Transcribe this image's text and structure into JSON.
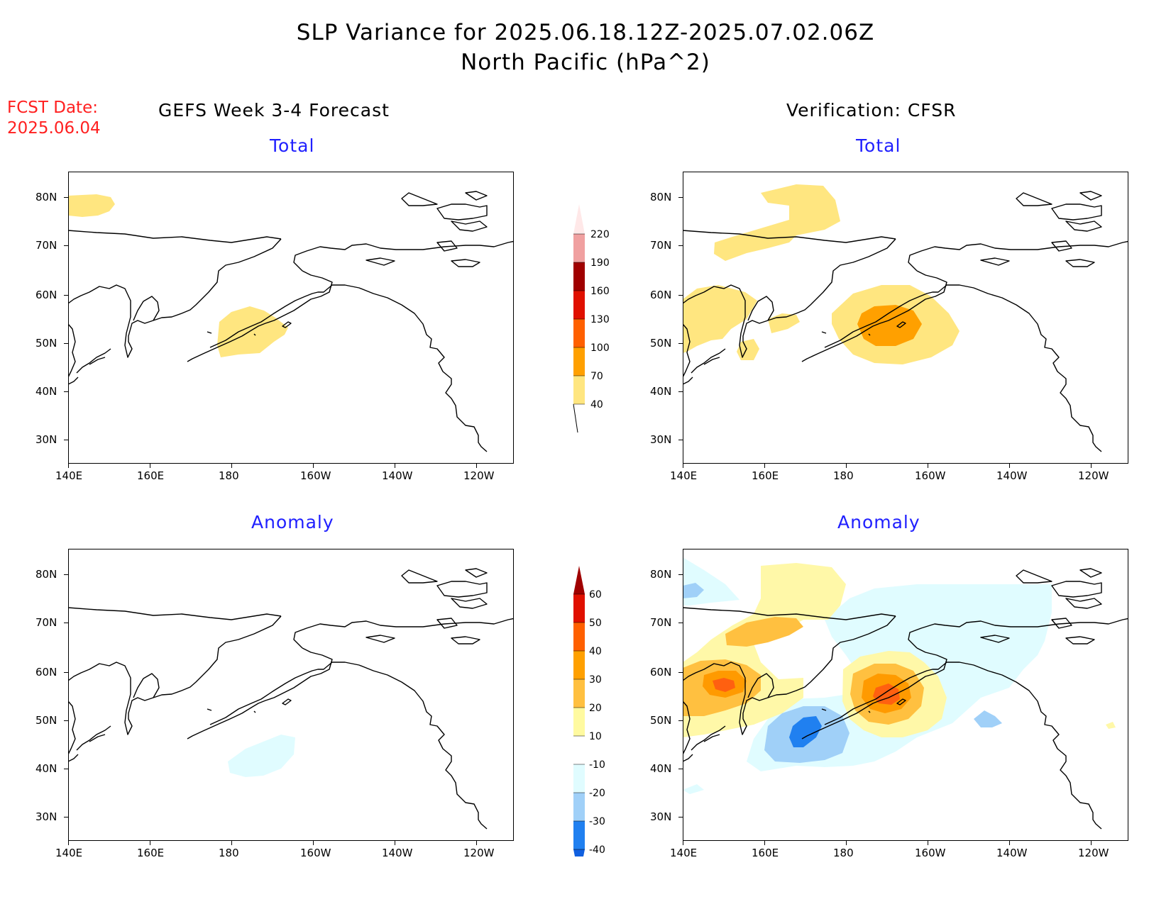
{
  "title": {
    "line1": "SLP Variance for 2025.06.18.12Z-2025.07.02.06Z",
    "line2": "North Pacific (hPa^2)"
  },
  "fcst": {
    "label": "FCST Date:",
    "date": "2025.06.04"
  },
  "columns": {
    "left": "GEFS Week 3-4 Forecast",
    "right": "Verification: CFSR"
  },
  "panel_titles": {
    "total": "Total",
    "anomaly": "Anomaly"
  },
  "axes": {
    "lon_labels": [
      "140E",
      "160E",
      "180",
      "160W",
      "140W",
      "120W"
    ],
    "lat_labels": [
      "80N",
      "70N",
      "60N",
      "50N",
      "40N",
      "30N"
    ]
  },
  "colorbars": {
    "total": {
      "levels": [
        "40",
        "70",
        "100",
        "130",
        "160",
        "190",
        "220"
      ],
      "colors": [
        "#ffe680",
        "#ffa000",
        "#ff6000",
        "#e01000",
        "#a00000",
        "#f0a0a0",
        "#ffe8e8"
      ]
    },
    "anomaly": {
      "levels": [
        "-40",
        "-30",
        "-20",
        "-10",
        "10",
        "20",
        "30",
        "40",
        "50",
        "60"
      ],
      "colors": [
        "#1060e0",
        "#2080f0",
        "#a0d0f8",
        "#e0fcff",
        "#ffffff",
        "#fffaa0",
        "#ffc040",
        "#ffa000",
        "#ff6000",
        "#e01000",
        "#a00000"
      ]
    }
  },
  "fill_colors": {
    "pos1": "#fff8a8",
    "pos2": "#ffe070",
    "pos3": "#ffc040",
    "pos4": "#ff9a00",
    "pos5": "#ff6010",
    "neg1": "#e0fcff",
    "neg2": "#a0d0f8",
    "neg3": "#2080f0"
  }
}
